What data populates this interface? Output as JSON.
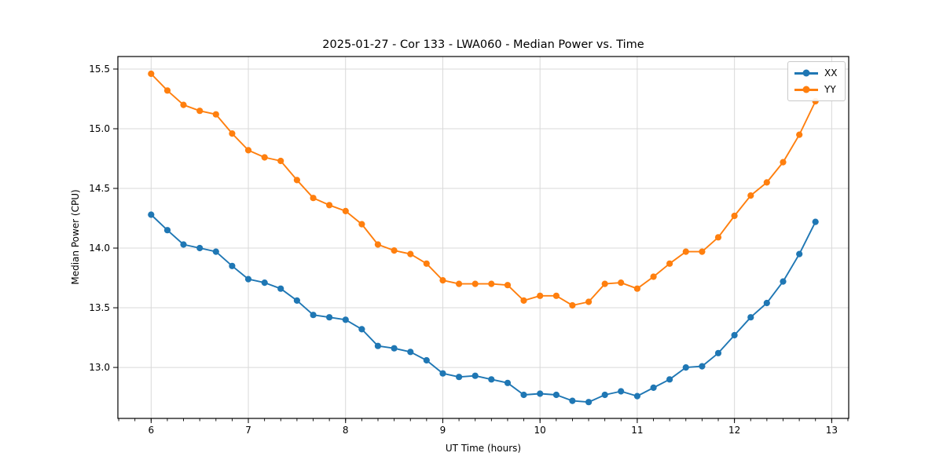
{
  "chart_data": {
    "type": "line",
    "title": "2025-01-27 - Cor 133 - LWA060 - Median Power vs. Time",
    "xlabel": "UT Time (hours)",
    "ylabel": "Median Power (CPU)",
    "xlim": [
      5.658,
      13.175
    ],
    "ylim": [
      12.573,
      15.605
    ],
    "x_ticks": [
      6,
      7,
      8,
      9,
      10,
      11,
      12,
      13
    ],
    "y_ticks": [
      13.0,
      13.5,
      14.0,
      14.5,
      15.0,
      15.5
    ],
    "x_minor_tick_step_hours": 0.166667,
    "grid": true,
    "grid_color": "#d9d9d9",
    "legend_position": "upper right",
    "marker": "circle",
    "x": [
      6.0,
      6.167,
      6.333,
      6.5,
      6.667,
      6.833,
      7.0,
      7.167,
      7.333,
      7.5,
      7.667,
      7.833,
      8.0,
      8.167,
      8.333,
      8.5,
      8.667,
      8.833,
      9.0,
      9.167,
      9.333,
      9.5,
      9.667,
      9.833,
      10.0,
      10.167,
      10.333,
      10.5,
      10.667,
      10.833,
      11.0,
      11.167,
      11.333,
      11.5,
      11.667,
      11.833,
      12.0,
      12.167,
      12.333,
      12.5,
      12.667,
      12.833
    ],
    "series": [
      {
        "name": "XX",
        "color": "#1f77b4",
        "values": [
          14.28,
          14.15,
          14.03,
          14.0,
          13.97,
          13.85,
          13.74,
          13.71,
          13.66,
          13.56,
          13.44,
          13.42,
          13.4,
          13.32,
          13.18,
          13.16,
          13.13,
          13.06,
          12.95,
          12.92,
          12.93,
          12.9,
          12.87,
          12.77,
          12.78,
          12.77,
          12.72,
          12.71,
          12.77,
          12.8,
          12.76,
          12.83,
          12.9,
          13.0,
          13.01,
          13.12,
          13.27,
          13.42,
          13.54,
          13.72,
          13.95,
          14.22
        ]
      },
      {
        "name": "YY",
        "color": "#ff7f0e",
        "values": [
          15.46,
          15.32,
          15.2,
          15.15,
          15.12,
          14.96,
          14.82,
          14.76,
          14.73,
          14.57,
          14.42,
          14.36,
          14.31,
          14.2,
          14.03,
          13.98,
          13.95,
          13.87,
          13.73,
          13.7,
          13.7,
          13.7,
          13.69,
          13.56,
          13.6,
          13.6,
          13.52,
          13.55,
          13.7,
          13.71,
          13.66,
          13.76,
          13.87,
          13.97,
          13.97,
          14.09,
          14.27,
          14.44,
          14.55,
          14.72,
          14.95,
          15.23
        ]
      }
    ]
  },
  "legend": {
    "items": [
      {
        "label": "XX",
        "color": "#1f77b4"
      },
      {
        "label": "YY",
        "color": "#ff7f0e"
      }
    ]
  }
}
